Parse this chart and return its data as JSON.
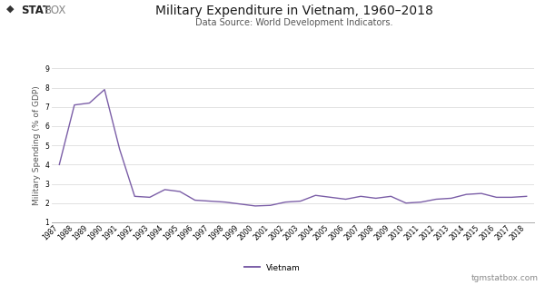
{
  "title": "Military Expenditure in Vietnam, 1960–2018",
  "subtitle": "Data Source: World Development Indicators.",
  "ylabel": "Military Spending (% of GDP)",
  "legend_label": "Vietnam",
  "watermark": "tgmstatbox.com",
  "line_color": "#7b5ea7",
  "background_color": "#ffffff",
  "years": [
    1987,
    1988,
    1989,
    1990,
    1991,
    1992,
    1993,
    1994,
    1995,
    1996,
    1997,
    1998,
    1999,
    2000,
    2001,
    2002,
    2003,
    2004,
    2005,
    2006,
    2007,
    2008,
    2009,
    2010,
    2011,
    2012,
    2013,
    2014,
    2015,
    2016,
    2017,
    2018
  ],
  "values": [
    4.0,
    7.1,
    7.2,
    7.9,
    4.8,
    2.35,
    2.3,
    2.7,
    2.6,
    2.15,
    2.1,
    2.05,
    1.95,
    1.85,
    1.88,
    2.05,
    2.1,
    2.4,
    2.3,
    2.2,
    2.35,
    2.25,
    2.35,
    2.0,
    2.05,
    2.2,
    2.25,
    2.45,
    2.5,
    2.3,
    2.3,
    2.35
  ],
  "ylim": [
    1,
    9
  ],
  "yticks": [
    1,
    2,
    3,
    4,
    5,
    6,
    7,
    8,
    9
  ],
  "title_fontsize": 10,
  "subtitle_fontsize": 7,
  "axis_fontsize": 5.5,
  "ylabel_fontsize": 6.5,
  "logo_bold_text": "STAT",
  "logo_light_text": "BOX",
  "logo_diamond": "◆"
}
